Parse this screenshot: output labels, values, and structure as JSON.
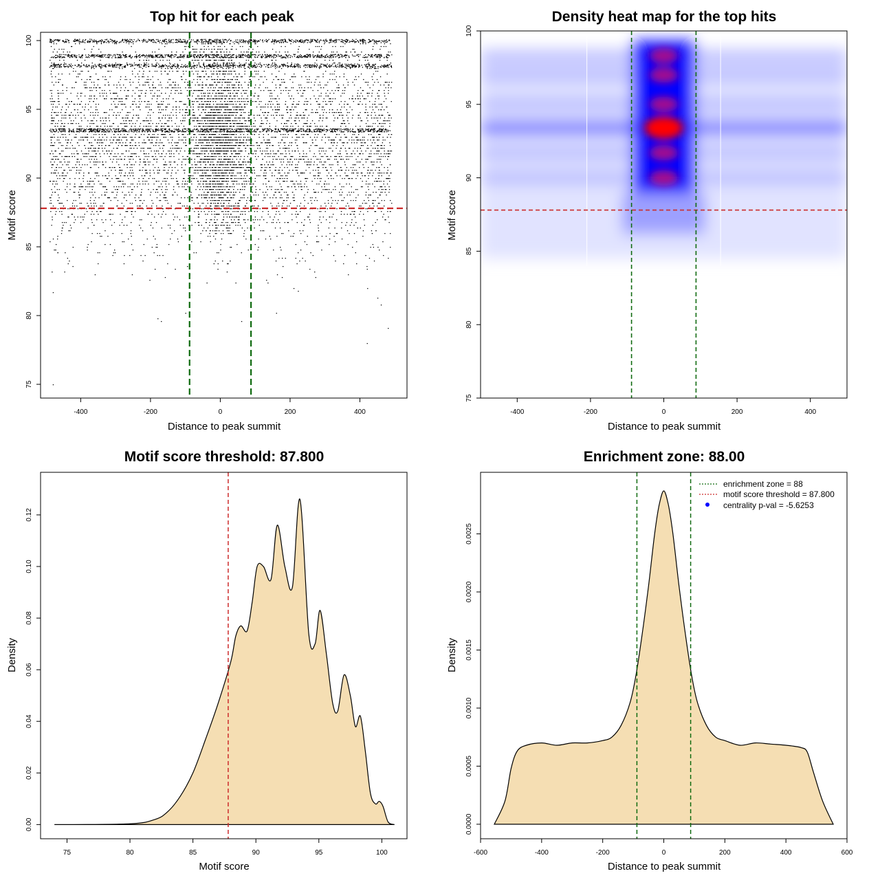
{
  "chart_data": [
    {
      "type": "scatter",
      "title": "Top hit for each peak",
      "xlabel": "Distance to peak summit",
      "ylabel": "Motif score",
      "xlim": [
        -500,
        500
      ],
      "ylim": [
        75,
        100
      ],
      "xticks": [
        "-400",
        "-200",
        "0",
        "200",
        "400"
      ],
      "yticks": [
        "75",
        "80",
        "85",
        "90",
        "95",
        "100"
      ],
      "x_range_of_points": [
        -490,
        490
      ],
      "densest_region": {
        "x": [
          -90,
          90
        ],
        "y": [
          86,
          100
        ]
      },
      "horizontal_bands_at": [
        93.5,
        98.9,
        98.2,
        100
      ],
      "sparse_points": [
        [
          -480,
          75
        ],
        [
          -180,
          79.8
        ],
        [
          -170,
          79.6
        ],
        [
          420,
          78
        ],
        [
          480,
          79.1
        ],
        [
          -480,
          81.7
        ],
        [
          450,
          81.3
        ],
        [
          460,
          80.8
        ],
        [
          60,
          79.6
        ],
        [
          160,
          80.2
        ]
      ],
      "threshold_lines": [
        {
          "axis": "y",
          "value": 87.8,
          "color": "#cc2a2a",
          "style": "dashed"
        },
        {
          "axis": "x",
          "value": -88,
          "color": "#0e6a0e",
          "style": "dashed"
        },
        {
          "axis": "x",
          "value": 88,
          "color": "#0e6a0e",
          "style": "dashed"
        }
      ]
    },
    {
      "type": "heatmap",
      "title": "Density heat map for the top hits",
      "xlabel": "Distance to peak summit",
      "ylabel": "Motif score",
      "xlim": [
        -500,
        500
      ],
      "ylim": [
        75,
        100
      ],
      "xticks": [
        "-400",
        "-200",
        "0",
        "200",
        "400"
      ],
      "yticks": [
        "75",
        "80",
        "85",
        "90",
        "95",
        "100"
      ],
      "color_scale": [
        "#ffffff",
        "#0000ff",
        "#ff0000"
      ],
      "hotspots_y": [
        98.3,
        97.0,
        95.0,
        93.4,
        91.7,
        90.0
      ],
      "hotspot_x": 0,
      "threshold_lines": [
        {
          "axis": "y",
          "value": 87.8,
          "color": "#cc2a2a",
          "style": "dashed"
        },
        {
          "axis": "x",
          "value": -88,
          "color": "#0e6a0e",
          "style": "dashed"
        },
        {
          "axis": "x",
          "value": 88,
          "color": "#0e6a0e",
          "style": "dashed"
        }
      ]
    },
    {
      "type": "area",
      "title": "Motif score threshold: 87.800",
      "xlabel": "Motif score",
      "ylabel": "Density",
      "xlim": [
        74,
        101
      ],
      "ylim": [
        0,
        0.13
      ],
      "xticks": [
        "75",
        "80",
        "85",
        "90",
        "95",
        "100"
      ],
      "yticks": [
        "0.00",
        "0.02",
        "0.04",
        "0.06",
        "0.08",
        "0.10",
        "0.12"
      ],
      "fill": "#f5deb3",
      "x": [
        74,
        80,
        82,
        83,
        84,
        85,
        86,
        87,
        88,
        88.4,
        88.8,
        89.3,
        89.7,
        90.1,
        90.6,
        91.2,
        91.7,
        92.3,
        92.9,
        93.5,
        94.2,
        94.7,
        95.1,
        95.6,
        96.1,
        96.5,
        97.0,
        97.5,
        97.9,
        98.3,
        98.7,
        99.1,
        99.5,
        99.8,
        100.1,
        100.5,
        101
      ],
      "y": [
        0.0,
        0.0003,
        0.002,
        0.005,
        0.011,
        0.02,
        0.033,
        0.047,
        0.063,
        0.073,
        0.077,
        0.075,
        0.086,
        0.1,
        0.1,
        0.095,
        0.116,
        0.1,
        0.092,
        0.126,
        0.074,
        0.07,
        0.083,
        0.066,
        0.047,
        0.044,
        0.058,
        0.05,
        0.038,
        0.042,
        0.028,
        0.012,
        0.008,
        0.009,
        0.007,
        0.001,
        0.0
      ],
      "threshold_lines": [
        {
          "axis": "x",
          "value": 87.8,
          "color": "#cc2a2a",
          "style": "dashed"
        }
      ]
    },
    {
      "type": "area",
      "title": "Enrichment zone: 88.00",
      "xlabel": "Distance to peak summit",
      "ylabel": "Density",
      "xlim": [
        -600,
        600
      ],
      "ylim": [
        0,
        0.00295
      ],
      "xticks": [
        "-600",
        "-400",
        "-200",
        "0",
        "200",
        "400",
        "600"
      ],
      "yticks": [
        "0.0000",
        "0.0005",
        "0.0010",
        "0.0015",
        "0.0020",
        "0.0025"
      ],
      "fill": "#f5deb3",
      "x": [
        -555,
        -520,
        -500,
        -480,
        -450,
        -400,
        -350,
        -300,
        -250,
        -200,
        -170,
        -140,
        -110,
        -90,
        -70,
        -50,
        -30,
        -15,
        0,
        15,
        30,
        50,
        70,
        90,
        110,
        140,
        170,
        200,
        250,
        300,
        350,
        400,
        450,
        470,
        490,
        520,
        555
      ],
      "y": [
        0.0,
        0.0002,
        0.00048,
        0.00063,
        0.00068,
        0.0007,
        0.00068,
        0.0007,
        0.0007,
        0.00072,
        0.00075,
        0.00085,
        0.00105,
        0.0013,
        0.00165,
        0.00205,
        0.0025,
        0.00275,
        0.00287,
        0.00275,
        0.0025,
        0.00205,
        0.00165,
        0.0013,
        0.00105,
        0.00085,
        0.00075,
        0.00072,
        0.00068,
        0.0007,
        0.00069,
        0.00068,
        0.00066,
        0.00062,
        0.00045,
        0.0002,
        0.0
      ],
      "threshold_lines": [
        {
          "axis": "x",
          "value": -88,
          "color": "#0e6a0e",
          "style": "dashed"
        },
        {
          "axis": "x",
          "value": 88,
          "color": "#0e6a0e",
          "style": "dashed"
        }
      ],
      "legend": {
        "position": "top-right",
        "items": [
          {
            "label": "enrichment zone = 88",
            "color": "#0e6a0e",
            "style": "dotted-line"
          },
          {
            "label": "motif score threshold = 87.800",
            "color": "#cc2a2a",
            "style": "dotted-line"
          },
          {
            "label": "centrality p-val = -5.6253",
            "color": "#0000ff",
            "style": "point"
          }
        ]
      }
    }
  ]
}
